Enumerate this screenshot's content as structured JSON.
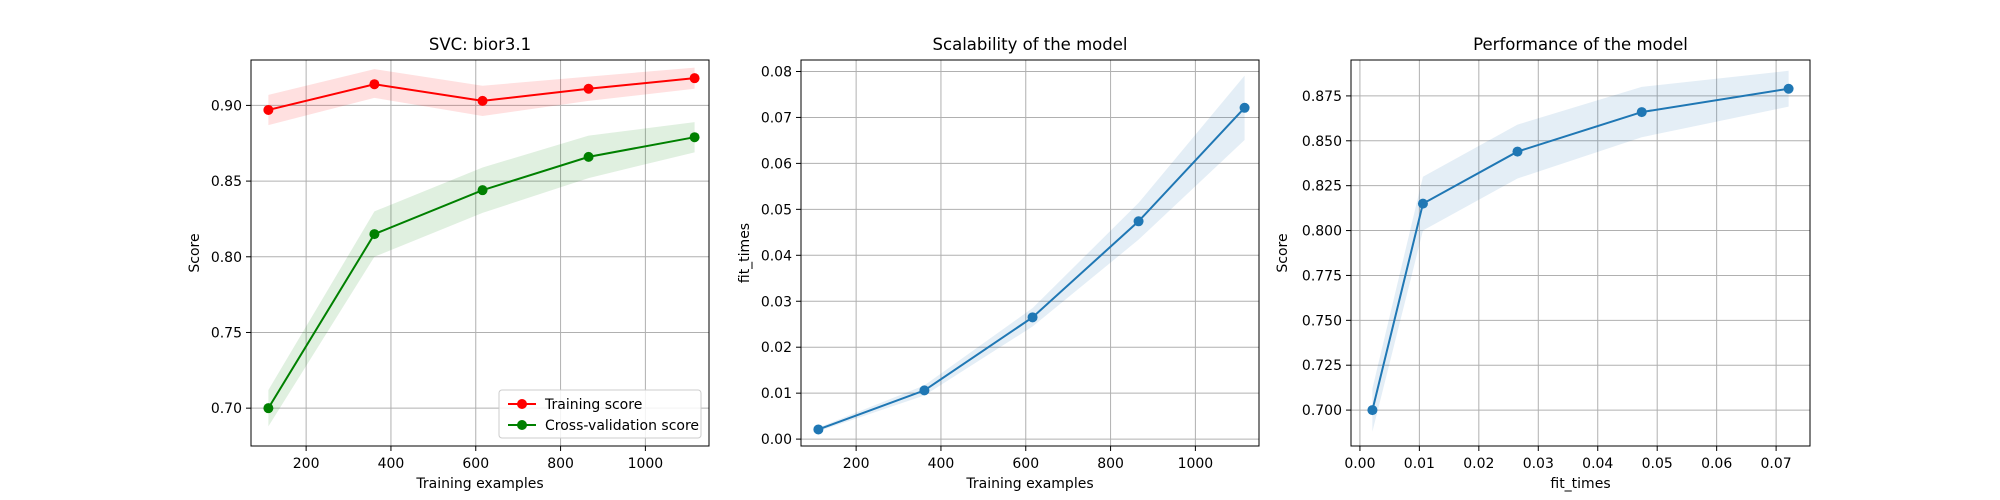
{
  "chart_data": [
    {
      "type": "line",
      "title": "SVC: bior3.1",
      "xlabel": "Training examples",
      "ylabel": "Score",
      "xlim": [
        70,
        1150
      ],
      "ylim": [
        0.675,
        0.93
      ],
      "xticks": [
        200,
        400,
        600,
        800,
        1000
      ],
      "yticks": [
        0.7,
        0.75,
        0.8,
        0.85,
        0.9
      ],
      "ytick_labels": [
        "0.70",
        "0.75",
        "0.80",
        "0.85",
        "0.90"
      ],
      "grid": true,
      "legend": "bottom-right",
      "series": [
        {
          "name": "Training score",
          "color": "#ff0000",
          "x": [
            111,
            361,
            616,
            866,
            1116
          ],
          "y": [
            0.897,
            0.914,
            0.903,
            0.911,
            0.918
          ],
          "band": [
            [
              0.887,
              0.907
            ],
            [
              0.905,
              0.924
            ],
            [
              0.893,
              0.913
            ],
            [
              0.903,
              0.919
            ],
            [
              0.911,
              0.925
            ]
          ]
        },
        {
          "name": "Cross-validation score",
          "color": "#008000",
          "x": [
            111,
            361,
            616,
            866,
            1116
          ],
          "y": [
            0.7,
            0.815,
            0.844,
            0.866,
            0.879
          ],
          "band": [
            [
              0.688,
              0.712
            ],
            [
              0.8,
              0.83
            ],
            [
              0.829,
              0.859
            ],
            [
              0.852,
              0.88
            ],
            [
              0.869,
              0.889
            ]
          ]
        }
      ]
    },
    {
      "type": "line",
      "title": "Scalability of the model",
      "xlabel": "Training examples",
      "ylabel": "fit_times",
      "xlim": [
        70,
        1150
      ],
      "ylim": [
        -0.0015,
        0.0825
      ],
      "xticks": [
        200,
        400,
        600,
        800,
        1000
      ],
      "yticks": [
        0.0,
        0.01,
        0.02,
        0.03,
        0.04,
        0.05,
        0.06,
        0.07,
        0.08
      ],
      "ytick_labels": [
        "0.00",
        "0.01",
        "0.02",
        "0.03",
        "0.04",
        "0.05",
        "0.06",
        "0.07",
        "0.08"
      ],
      "grid": true,
      "series": [
        {
          "color": "#1f77b4",
          "x": [
            111,
            361,
            616,
            866,
            1116
          ],
          "y": [
            0.0021,
            0.0106,
            0.0265,
            0.0474,
            0.0721
          ],
          "band": [
            [
              0.0017,
              0.0025
            ],
            [
              0.0095,
              0.0117
            ],
            [
              0.0245,
              0.0285
            ],
            [
              0.0434,
              0.0514
            ],
            [
              0.0651,
              0.0791
            ]
          ]
        }
      ]
    },
    {
      "type": "line",
      "title": "Performance of the model",
      "xlabel": "fit_times",
      "ylabel": "Score",
      "xlim": [
        -0.0015,
        0.0757
      ],
      "ylim": [
        0.68,
        0.895
      ],
      "xticks": [
        0.0,
        0.01,
        0.02,
        0.03,
        0.04,
        0.05,
        0.06,
        0.07
      ],
      "xtick_labels": [
        "0.00",
        "0.01",
        "0.02",
        "0.03",
        "0.04",
        "0.05",
        "0.06",
        "0.07"
      ],
      "yticks": [
        0.7,
        0.725,
        0.75,
        0.775,
        0.8,
        0.825,
        0.85,
        0.875
      ],
      "ytick_labels": [
        "0.700",
        "0.725",
        "0.750",
        "0.775",
        "0.800",
        "0.825",
        "0.850",
        "0.875"
      ],
      "grid": true,
      "series": [
        {
          "color": "#1f77b4",
          "x": [
            0.0021,
            0.0106,
            0.0265,
            0.0474,
            0.0721
          ],
          "y": [
            0.7,
            0.815,
            0.844,
            0.866,
            0.879
          ],
          "band": [
            [
              0.688,
              0.712
            ],
            [
              0.8,
              0.83
            ],
            [
              0.829,
              0.859
            ],
            [
              0.852,
              0.88
            ],
            [
              0.869,
              0.889
            ]
          ]
        }
      ]
    }
  ]
}
